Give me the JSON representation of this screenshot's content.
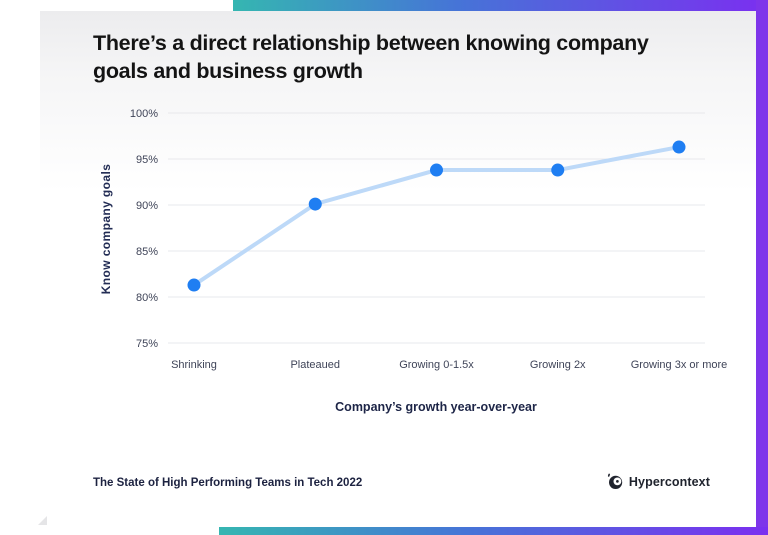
{
  "page": {
    "background": "#ffffff",
    "accent_gradient": [
      "#35b6b1",
      "#4674d7",
      "#7b2ff0"
    ],
    "right_band_color": "#7e35ea",
    "card_top_tint": "#ececee"
  },
  "header": {
    "title": "There’s a direct relationship between knowing company goals and business growth"
  },
  "chart_data": {
    "type": "line",
    "title": "There’s a direct relationship between knowing company goals and business growth",
    "categories": [
      "Shrinking",
      "Plateaued",
      "Growing 0-1.5x",
      "Growing 2x",
      "Growing 3x or more"
    ],
    "values": [
      81.3,
      90.1,
      93.8,
      93.8,
      96.3
    ],
    "series_name": "Know company goals",
    "xlabel": "Company’s growth year-over-year",
    "ylabel": "Know company goals",
    "ylim": [
      75,
      100
    ],
    "yticks": [
      100,
      95,
      90,
      85,
      80,
      75
    ],
    "ytick_suffix": "%",
    "grid": true,
    "legend": false,
    "line_color": "#bdd9f8",
    "point_color": "#1f7ef2",
    "grid_color": "#e7e8ec",
    "tick_label_color": "#3f4458"
  },
  "footer": {
    "source": "The State of High Performing Teams in Tech 2022",
    "brand": "Hypercontext"
  }
}
